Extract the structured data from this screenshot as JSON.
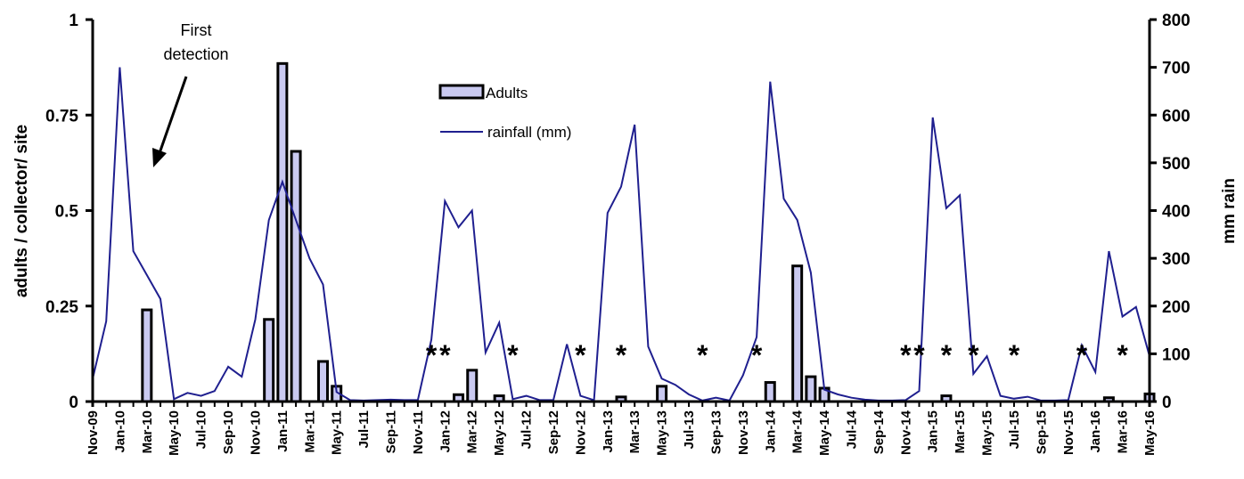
{
  "chart_data": {
    "type": "bar+line",
    "categories": [
      "Nov-09",
      "Dec-09",
      "Jan-10",
      "Feb-10",
      "Mar-10",
      "Apr-10",
      "May-10",
      "Jun-10",
      "Jul-10",
      "Aug-10",
      "Sep-10",
      "Oct-10",
      "Nov-10",
      "Dec-10",
      "Jan-11",
      "Feb-11",
      "Mar-11",
      "Apr-11",
      "May-11",
      "Jun-11",
      "Jul-11",
      "Aug-11",
      "Sep-11",
      "Oct-11",
      "Nov-11",
      "Dec-11",
      "Jan-12",
      "Feb-12",
      "Mar-12",
      "Apr-12",
      "May-12",
      "Jun-12",
      "Jul-12",
      "Aug-12",
      "Sep-12",
      "Oct-12",
      "Nov-12",
      "Dec-12",
      "Jan-13",
      "Feb-13",
      "Mar-13",
      "Apr-13",
      "May-13",
      "Jun-13",
      "Jul-13",
      "Aug-13",
      "Sep-13",
      "Oct-13",
      "Nov-13",
      "Dec-13",
      "Jan-14",
      "Feb-14",
      "Mar-14",
      "Apr-14",
      "May-14",
      "Jun-14",
      "Jul-14",
      "Aug-14",
      "Sep-14",
      "Oct-14",
      "Nov-14",
      "Dec-14",
      "Jan-15",
      "Feb-15",
      "Mar-15",
      "Apr-15",
      "May-15",
      "Jun-15",
      "Jul-15",
      "Aug-15",
      "Sep-15",
      "Oct-15",
      "Nov-15",
      "Dec-15",
      "Jan-16",
      "Feb-16",
      "Mar-16",
      "Apr-16",
      "May-16"
    ],
    "x_tick_labels": [
      "Nov-09",
      "Jan-10",
      "Mar-10",
      "May-10",
      "Jul-10",
      "Sep-10",
      "Nov-10",
      "Jan-11",
      "Mar-11",
      "May-11",
      "Jul-11",
      "Sep-11",
      "Nov-11",
      "Jan-12",
      "Mar-12",
      "May-12",
      "Jul-12",
      "Sep-12",
      "Nov-12",
      "Jan-13",
      "Mar-13",
      "May-13",
      "Jul-13",
      "Sep-13",
      "Nov-13",
      "Jan-14",
      "Mar-14",
      "May-14",
      "Jul-14",
      "Sep-14",
      "Nov-14",
      "Jan-15",
      "Mar-15",
      "May-15",
      "Jul-15",
      "Sep-15",
      "Nov-15",
      "Jan-16",
      "Mar-16",
      "May-16"
    ],
    "series": [
      {
        "name": "Adults",
        "type": "bar",
        "axis": "left",
        "color": "#c9c9f0",
        "values": [
          null,
          null,
          null,
          null,
          0.24,
          null,
          null,
          null,
          null,
          null,
          null,
          null,
          null,
          0.215,
          0.885,
          0.655,
          null,
          0.105,
          0.04,
          null,
          null,
          null,
          null,
          null,
          null,
          null,
          null,
          0.018,
          0.082,
          null,
          0.015,
          null,
          null,
          null,
          null,
          null,
          null,
          null,
          null,
          0.012,
          null,
          null,
          0.04,
          null,
          null,
          null,
          null,
          null,
          null,
          null,
          0.05,
          null,
          0.355,
          0.065,
          0.035,
          null,
          null,
          null,
          null,
          null,
          null,
          null,
          null,
          0.015,
          null,
          null,
          null,
          null,
          null,
          null,
          null,
          null,
          null,
          null,
          null,
          0.01,
          null,
          null,
          0.02
        ]
      },
      {
        "name": "rainfall (mm)",
        "type": "line",
        "axis": "right",
        "color": "#1f1f8f",
        "values": [
          48,
          168,
          700,
          315,
          265,
          215,
          5,
          18,
          12,
          22,
          73,
          52,
          172,
          380,
          460,
          380,
          300,
          245,
          20,
          3,
          2,
          3,
          4,
          3,
          3,
          130,
          420,
          365,
          400,
          103,
          165,
          5,
          12,
          3,
          3,
          120,
          12,
          3,
          395,
          450,
          580,
          115,
          48,
          35,
          15,
          2,
          8,
          2,
          55,
          135,
          670,
          425,
          380,
          270,
          25,
          15,
          8,
          4,
          2,
          2,
          3,
          22,
          595,
          405,
          432,
          58,
          95,
          12,
          6,
          10,
          2,
          2,
          3,
          118,
          62,
          315,
          178,
          198,
          95
        ]
      }
    ],
    "ylim_left": [
      0,
      1
    ],
    "ylim_right": [
      0,
      800
    ],
    "yticks_left": [
      "0",
      "0.25",
      "0.5",
      "0.75",
      "1"
    ],
    "yticks_right": [
      "0",
      "100",
      "200",
      "300",
      "400",
      "500",
      "600",
      "700",
      "800"
    ],
    "ylabel_left": "adults / collector/ site",
    "ylabel_right": "mm rain",
    "legend": {
      "position": "top-center",
      "entries": [
        "Adults",
        "rainfall (mm)"
      ]
    },
    "annotation": {
      "line1": "First",
      "line2": "detection"
    },
    "star_symbol": "*",
    "stars_at": [
      "Dec-11",
      "Jan-12",
      "Jun-12",
      "Nov-12",
      "Feb-13",
      "Aug-13",
      "Dec-13",
      "Nov-14",
      "Dec-14",
      "Feb-15",
      "Apr-15",
      "Jul-15",
      "Dec-15",
      "Mar-16"
    ]
  }
}
